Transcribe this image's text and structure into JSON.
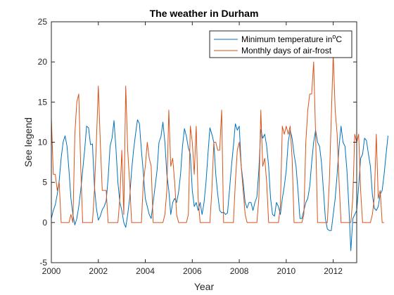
{
  "chart_data": {
    "type": "line",
    "title": "The weather in Durham",
    "xlabel": "Year",
    "ylabel": "See legend",
    "xlim": [
      2000,
      2013
    ],
    "ylim": [
      -5,
      25
    ],
    "x_ticks": [
      2000,
      2002,
      2004,
      2006,
      2008,
      2010,
      2012
    ],
    "x_tick_labels": [
      "2000",
      "2002",
      "2004",
      "2006",
      "2008",
      "2010",
      "2012"
    ],
    "y_ticks": [
      -5,
      0,
      5,
      10,
      15,
      20,
      25
    ],
    "y_tick_labels": [
      "-5",
      "0",
      "5",
      "10",
      "15",
      "20",
      "25"
    ],
    "grid": false,
    "legend_placement": "top-right",
    "x_start": 2000,
    "x_step_months": 1,
    "series": [
      {
        "name": "Minimum temperature in",
        "name_unit_superscript": "o",
        "name_unit_suffix": "C",
        "color": "#0072BD",
        "values": [
          0.5,
          1.5,
          2.2,
          3.5,
          5.2,
          8.0,
          10.0,
          10.8,
          9.5,
          6.5,
          3.0,
          1.0,
          -0.3,
          0.5,
          2.0,
          4.0,
          6.5,
          9.0,
          12.0,
          11.8,
          9.7,
          9.8,
          4.5,
          1.8,
          0.3,
          0.8,
          1.6,
          2.0,
          2.7,
          5.5,
          9.5,
          10.5,
          12.7,
          9.2,
          5.0,
          2.5,
          1.5,
          0.0,
          -0.6,
          1.0,
          3.0,
          6.5,
          9.0,
          11.0,
          12.8,
          12.3,
          9.0,
          6.2,
          3.0,
          2.0,
          1.0,
          0.5,
          2.5,
          4.5,
          6.5,
          10.0,
          10.7,
          12.5,
          10.0,
          6.0,
          4.0,
          1.0,
          2.5,
          3.0,
          2.5,
          3.8,
          6.0,
          9.5,
          11.7,
          10.7,
          9.3,
          8.5,
          4.0,
          2.0,
          2.5,
          1.5,
          2.5,
          1.0,
          2.5,
          5.0,
          8.5,
          11.8,
          11.0,
          10.0,
          6.0,
          3.5,
          1.5,
          1.2,
          1.3,
          1.0,
          1.2,
          4.0,
          7.0,
          9.5,
          12.3,
          11.5,
          12.0,
          7.0,
          5.0,
          2.5,
          1.8,
          2.5,
          2.5,
          1.5,
          2.5,
          3.2,
          6.5,
          11.6,
          10.5,
          11.0,
          9.5,
          7.0,
          3.0,
          1.0,
          0.8,
          2.5,
          2.0,
          1.0,
          3.0,
          4.5,
          6.5,
          10.0,
          11.5,
          10.5,
          8.5,
          7.0,
          4.0,
          0.5,
          0.5,
          1.5,
          2.5,
          3.0,
          4.5,
          7.5,
          10.0,
          11.5,
          10.0,
          9.5,
          7.5,
          4.0,
          0.5,
          -0.8,
          -1.0,
          -1.0,
          1.0,
          3.0,
          6.0,
          9.5,
          12.0,
          10.0,
          9.5,
          6.5,
          2.0,
          -3.5,
          0.5,
          1.0,
          1.5,
          4.5,
          8.0,
          8.5,
          10.5,
          10.2,
          8.5,
          7.0,
          3.5,
          1.8,
          1.5,
          2.0,
          3.5,
          4.0,
          6.0,
          8.5,
          10.8
        ]
      },
      {
        "name": "Monthly days of air-frost",
        "color": "#D95319",
        "values": [
          13,
          6,
          6,
          4,
          5,
          0,
          0,
          0,
          0,
          0,
          1,
          0,
          11,
          15,
          16,
          7,
          0,
          0,
          0,
          0,
          0,
          0,
          4,
          10,
          17,
          10,
          4,
          4,
          4,
          0,
          0,
          0,
          0,
          0,
          0,
          3,
          9,
          1,
          17,
          9,
          5,
          0,
          0,
          0,
          0,
          0,
          0,
          5,
          7,
          10,
          8,
          7,
          0,
          0,
          0,
          0,
          0,
          0,
          1,
          4,
          14,
          7,
          8,
          5,
          1,
          0,
          0,
          0,
          0,
          0,
          1,
          12,
          10,
          6,
          12,
          3,
          0,
          0,
          0,
          0,
          0,
          0,
          4,
          10,
          10,
          9,
          9,
          14,
          0,
          0,
          0,
          0,
          0,
          0,
          5,
          9,
          10,
          7,
          4,
          1,
          0,
          0,
          0,
          0,
          0,
          0,
          3,
          14,
          7,
          8,
          5,
          0,
          0,
          0,
          0,
          0,
          0,
          2,
          12,
          11,
          12,
          11,
          12,
          8,
          0,
          0,
          0,
          0,
          0,
          1,
          10,
          14,
          16,
          16,
          20,
          11,
          0,
          0,
          0,
          0,
          0,
          0,
          5,
          13,
          21,
          14,
          11,
          5,
          0,
          0,
          0,
          0,
          0,
          0,
          3,
          11,
          10,
          11,
          4,
          0,
          0,
          0,
          0,
          0,
          1,
          3,
          11,
          3,
          4,
          0,
          0
        ]
      }
    ]
  }
}
